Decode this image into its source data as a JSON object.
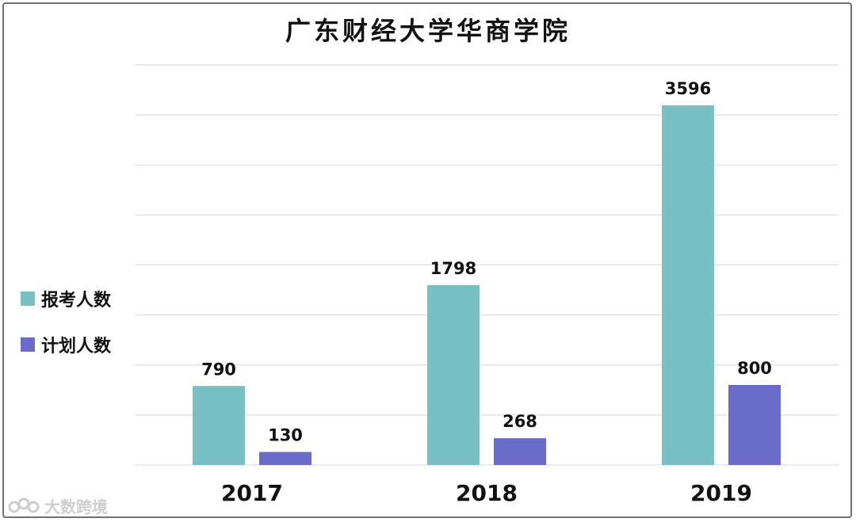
{
  "chart_data": {
    "type": "bar",
    "title": "广东财经大学华商学院",
    "categories": [
      "2017",
      "2018",
      "2019"
    ],
    "series": [
      {
        "name": "报考人数",
        "color": "#78C0C4",
        "values": [
          790,
          1798,
          3596
        ]
      },
      {
        "name": "计划人数",
        "color": "#6B6CC9",
        "values": [
          130,
          268,
          800
        ]
      }
    ],
    "ylim": [
      0,
      4000
    ],
    "grid": true,
    "legend": "left",
    "xlabel": "",
    "ylabel": ""
  },
  "watermark": {
    "text": "大数跨境"
  }
}
